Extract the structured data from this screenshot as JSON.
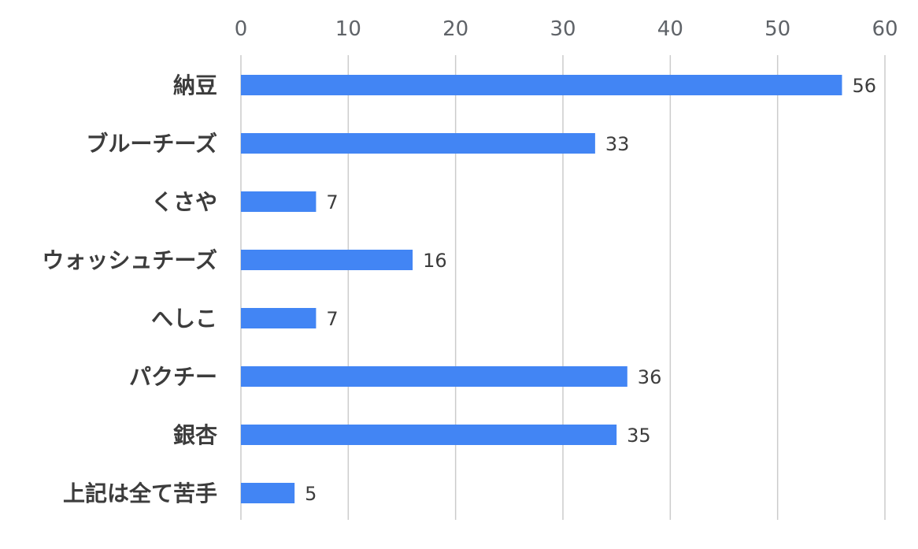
{
  "chart_data": {
    "type": "bar",
    "orientation": "horizontal",
    "categories": [
      "納豆",
      "ブルーチーズ",
      "くさや",
      "ウォッシュチーズ",
      "へしこ",
      "パクチー",
      "銀杏",
      "上記は全て苦手"
    ],
    "values": [
      56,
      33,
      7,
      16,
      7,
      36,
      35,
      5
    ],
    "xticks": [
      "0",
      "10",
      "20",
      "30",
      "40",
      "50",
      "60"
    ],
    "xlim": [
      0,
      60
    ],
    "title": "",
    "xlabel": "",
    "ylabel": "",
    "grid": true,
    "axis_position": "top",
    "bar_color": "#4285f4",
    "data_labels": true
  }
}
